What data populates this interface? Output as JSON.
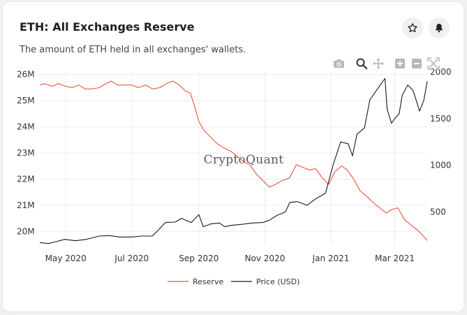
{
  "header": {
    "title": "ETH: All Exchanges Reserve",
    "subtitle": "The amount of ETH held in all exchanges' wallets."
  },
  "actions": {
    "favorite_icon": "star-icon",
    "alert_icon": "bell-icon"
  },
  "modebar": {
    "icons": [
      "camera-icon",
      "zoom-icon",
      "pan-icon",
      "zoom-in-icon",
      "zoom-out-icon",
      "autoscale-icon"
    ]
  },
  "watermark": "CryptoQuant",
  "colors": {
    "reserve": "#e4573b",
    "price": "#1a1a1a",
    "grid": "#ececec"
  },
  "chart_data": {
    "type": "line",
    "x_range": [
      "2020-04-07",
      "2021-03-31"
    ],
    "x_ticks": [
      {
        "date": "2020-05-01",
        "label": "May 2020"
      },
      {
        "date": "2020-07-01",
        "label": "Jul 2020"
      },
      {
        "date": "2020-09-01",
        "label": "Sep 2020"
      },
      {
        "date": "2020-11-01",
        "label": "Nov 2020"
      },
      {
        "date": "2021-01-01",
        "label": "Jan 2021"
      },
      {
        "date": "2021-03-01",
        "label": "Mar 2021"
      }
    ],
    "y_left": {
      "range": [
        19.5,
        26.1
      ],
      "ticks": [
        {
          "value": 20,
          "label": "20M"
        },
        {
          "value": 21,
          "label": "21M"
        },
        {
          "value": 22,
          "label": "22M"
        },
        {
          "value": 23,
          "label": "23M"
        },
        {
          "value": 24,
          "label": "24M"
        },
        {
          "value": 25,
          "label": "25M"
        },
        {
          "value": 26,
          "label": "26M"
        }
      ]
    },
    "y_right": {
      "range": [
        150,
        2000
      ],
      "ticks": [
        {
          "value": 500,
          "label": "500"
        },
        {
          "value": 1000,
          "label": "1000"
        },
        {
          "value": 1500,
          "label": "1500"
        },
        {
          "value": 2000,
          "label": "2000"
        }
      ]
    },
    "grid": true,
    "legend_position": "bottom",
    "series": [
      {
        "name": "Reserve",
        "axis": "left",
        "points": [
          [
            "2020-04-07",
            25.6
          ],
          [
            "2020-04-12",
            25.65
          ],
          [
            "2020-04-18",
            25.55
          ],
          [
            "2020-04-24",
            25.65
          ],
          [
            "2020-05-01",
            25.55
          ],
          [
            "2020-05-07",
            25.5
          ],
          [
            "2020-05-13",
            25.6
          ],
          [
            "2020-05-19",
            25.45
          ],
          [
            "2020-05-25",
            25.45
          ],
          [
            "2020-06-01",
            25.5
          ],
          [
            "2020-06-07",
            25.65
          ],
          [
            "2020-06-12",
            25.75
          ],
          [
            "2020-06-18",
            25.6
          ],
          [
            "2020-06-24",
            25.6
          ],
          [
            "2020-07-01",
            25.6
          ],
          [
            "2020-07-07",
            25.5
          ],
          [
            "2020-07-14",
            25.6
          ],
          [
            "2020-07-20",
            25.45
          ],
          [
            "2020-07-27",
            25.5
          ],
          [
            "2020-08-02",
            25.65
          ],
          [
            "2020-08-08",
            25.75
          ],
          [
            "2020-08-14",
            25.6
          ],
          [
            "2020-08-20",
            25.35
          ],
          [
            "2020-08-24",
            25.3
          ],
          [
            "2020-08-28",
            24.8
          ],
          [
            "2020-09-01",
            24.2
          ],
          [
            "2020-09-06",
            23.85
          ],
          [
            "2020-09-12",
            23.6
          ],
          [
            "2020-09-18",
            23.35
          ],
          [
            "2020-09-24",
            23.2
          ],
          [
            "2020-10-01",
            23.05
          ],
          [
            "2020-10-07",
            22.85
          ],
          [
            "2020-10-13",
            22.65
          ],
          [
            "2020-10-18",
            22.55
          ],
          [
            "2020-10-24",
            22.2
          ],
          [
            "2020-10-30",
            21.95
          ],
          [
            "2020-11-05",
            21.7
          ],
          [
            "2020-11-11",
            21.8
          ],
          [
            "2020-11-17",
            21.95
          ],
          [
            "2020-11-24",
            22.05
          ],
          [
            "2020-11-30",
            22.55
          ],
          [
            "2020-12-06",
            22.45
          ],
          [
            "2020-12-12",
            22.35
          ],
          [
            "2020-12-18",
            22.4
          ],
          [
            "2020-12-24",
            22.05
          ],
          [
            "2020-12-30",
            21.8
          ],
          [
            "2021-01-05",
            22.3
          ],
          [
            "2021-01-11",
            22.5
          ],
          [
            "2021-01-16",
            22.35
          ],
          [
            "2021-01-22",
            22.0
          ],
          [
            "2021-01-28",
            21.55
          ],
          [
            "2021-02-03",
            21.35
          ],
          [
            "2021-02-09",
            21.1
          ],
          [
            "2021-02-15",
            20.9
          ],
          [
            "2021-02-21",
            20.7
          ],
          [
            "2021-02-27",
            20.85
          ],
          [
            "2021-03-04",
            20.9
          ],
          [
            "2021-03-10",
            20.45
          ],
          [
            "2021-03-16",
            20.25
          ],
          [
            "2021-03-22",
            20.05
          ],
          [
            "2021-03-28",
            19.8
          ],
          [
            "2021-03-31",
            19.65
          ]
        ]
      },
      {
        "name": "Price (USD)",
        "axis": "right",
        "points": [
          [
            "2020-04-07",
            170
          ],
          [
            "2020-04-15",
            160
          ],
          [
            "2020-04-22",
            180
          ],
          [
            "2020-04-30",
            205
          ],
          [
            "2020-05-10",
            190
          ],
          [
            "2020-05-20",
            205
          ],
          [
            "2020-06-01",
            240
          ],
          [
            "2020-06-10",
            245
          ],
          [
            "2020-06-20",
            230
          ],
          [
            "2020-07-01",
            230
          ],
          [
            "2020-07-10",
            240
          ],
          [
            "2020-07-20",
            240
          ],
          [
            "2020-07-26",
            310
          ],
          [
            "2020-08-01",
            385
          ],
          [
            "2020-08-10",
            390
          ],
          [
            "2020-08-16",
            430
          ],
          [
            "2020-08-25",
            385
          ],
          [
            "2020-09-01",
            470
          ],
          [
            "2020-09-05",
            340
          ],
          [
            "2020-09-12",
            370
          ],
          [
            "2020-09-20",
            380
          ],
          [
            "2020-09-25",
            340
          ],
          [
            "2020-10-01",
            355
          ],
          [
            "2020-10-10",
            365
          ],
          [
            "2020-10-20",
            380
          ],
          [
            "2020-10-30",
            385
          ],
          [
            "2020-11-05",
            410
          ],
          [
            "2020-11-12",
            460
          ],
          [
            "2020-11-20",
            500
          ],
          [
            "2020-11-24",
            600
          ],
          [
            "2020-12-01",
            610
          ],
          [
            "2020-12-10",
            570
          ],
          [
            "2020-12-18",
            640
          ],
          [
            "2020-12-27",
            700
          ],
          [
            "2021-01-03",
            1000
          ],
          [
            "2021-01-10",
            1250
          ],
          [
            "2021-01-17",
            1230
          ],
          [
            "2021-01-21",
            1100
          ],
          [
            "2021-01-25",
            1330
          ],
          [
            "2021-02-01",
            1400
          ],
          [
            "2021-02-06",
            1700
          ],
          [
            "2021-02-12",
            1800
          ],
          [
            "2021-02-20",
            1930
          ],
          [
            "2021-02-22",
            1600
          ],
          [
            "2021-02-26",
            1450
          ],
          [
            "2021-03-01",
            1500
          ],
          [
            "2021-03-05",
            1550
          ],
          [
            "2021-03-08",
            1750
          ],
          [
            "2021-03-13",
            1860
          ],
          [
            "2021-03-18",
            1800
          ],
          [
            "2021-03-24",
            1580
          ],
          [
            "2021-03-28",
            1700
          ],
          [
            "2021-03-31",
            1900
          ]
        ]
      }
    ]
  }
}
